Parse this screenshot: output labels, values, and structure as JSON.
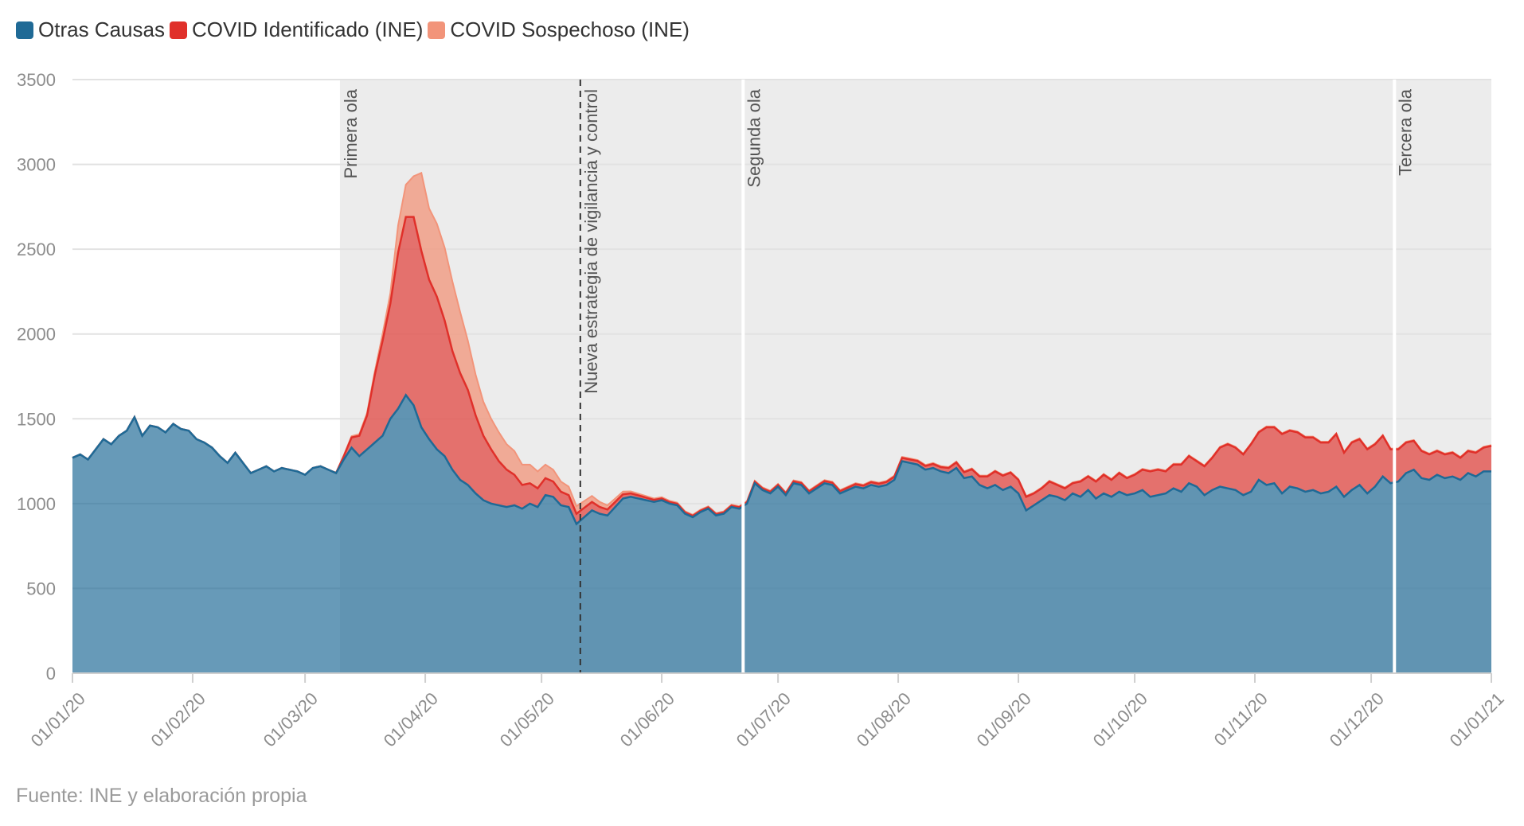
{
  "legend": [
    {
      "label": "Otras Causas",
      "color": "#1f6a96"
    },
    {
      "label": "COVID Identificado (INE)",
      "color": "#e0302a"
    },
    {
      "label": "COVID Sospechoso (INE)",
      "color": "#f2947a"
    }
  ],
  "source": "Fuente: INE y elaboración propia",
  "chart_data": {
    "type": "area",
    "stacked": true,
    "ylim": [
      0,
      3500
    ],
    "yticks": [
      0,
      500,
      1000,
      1500,
      2000,
      2500,
      3000,
      3500
    ],
    "xlim_days": [
      0,
      366
    ],
    "xticks": [
      {
        "label": "01/01/20",
        "day": 0
      },
      {
        "label": "01/02/20",
        "day": 31
      },
      {
        "label": "01/03/20",
        "day": 60
      },
      {
        "label": "01/04/20",
        "day": 91
      },
      {
        "label": "01/05/20",
        "day": 121
      },
      {
        "label": "01/06/20",
        "day": 152
      },
      {
        "label": "01/07/20",
        "day": 182
      },
      {
        "label": "01/08/20",
        "day": 213
      },
      {
        "label": "01/09/20",
        "day": 244
      },
      {
        "label": "01/10/20",
        "day": 274
      },
      {
        "label": "01/11/20",
        "day": 305
      },
      {
        "label": "01/12/20",
        "day": 335
      },
      {
        "label": "01/01/21",
        "day": 366
      }
    ],
    "shaded_region": {
      "start_day": 69,
      "end_day": 366,
      "color": "#ececec"
    },
    "annotations": [
      {
        "label": "Primera ola",
        "day": 69,
        "style": "none"
      },
      {
        "label": "Nueva estrategia de vigilancia y control",
        "day": 131,
        "style": "dashed"
      },
      {
        "label": "Segunda ola",
        "day": 173,
        "style": "white"
      },
      {
        "label": "Tercera ola",
        "day": 341,
        "style": "white"
      }
    ],
    "series_points": {
      "otras_causas": [
        [
          0,
          1270
        ],
        [
          2,
          1290
        ],
        [
          4,
          1260
        ],
        [
          6,
          1320
        ],
        [
          8,
          1380
        ],
        [
          10,
          1350
        ],
        [
          12,
          1400
        ],
        [
          14,
          1430
        ],
        [
          16,
          1510
        ],
        [
          18,
          1400
        ],
        [
          20,
          1460
        ],
        [
          22,
          1450
        ],
        [
          24,
          1420
        ],
        [
          26,
          1470
        ],
        [
          28,
          1440
        ],
        [
          30,
          1430
        ],
        [
          32,
          1380
        ],
        [
          34,
          1360
        ],
        [
          36,
          1330
        ],
        [
          38,
          1280
        ],
        [
          40,
          1240
        ],
        [
          42,
          1300
        ],
        [
          44,
          1240
        ],
        [
          46,
          1180
        ],
        [
          48,
          1200
        ],
        [
          50,
          1220
        ],
        [
          52,
          1190
        ],
        [
          54,
          1210
        ],
        [
          56,
          1200
        ],
        [
          58,
          1190
        ],
        [
          60,
          1170
        ],
        [
          62,
          1210
        ],
        [
          64,
          1220
        ],
        [
          66,
          1200
        ],
        [
          68,
          1180
        ],
        [
          70,
          1260
        ],
        [
          72,
          1330
        ],
        [
          74,
          1280
        ],
        [
          76,
          1320
        ],
        [
          78,
          1360
        ],
        [
          80,
          1400
        ],
        [
          82,
          1500
        ],
        [
          84,
          1560
        ],
        [
          86,
          1640
        ],
        [
          88,
          1580
        ],
        [
          90,
          1450
        ],
        [
          92,
          1380
        ],
        [
          94,
          1320
        ],
        [
          96,
          1280
        ],
        [
          98,
          1200
        ],
        [
          100,
          1140
        ],
        [
          102,
          1110
        ],
        [
          104,
          1060
        ],
        [
          106,
          1020
        ],
        [
          108,
          1000
        ],
        [
          110,
          990
        ],
        [
          112,
          980
        ],
        [
          114,
          990
        ],
        [
          116,
          970
        ],
        [
          118,
          1000
        ],
        [
          120,
          980
        ],
        [
          122,
          1050
        ],
        [
          124,
          1040
        ],
        [
          126,
          990
        ],
        [
          128,
          980
        ],
        [
          130,
          880
        ],
        [
          132,
          920
        ],
        [
          134,
          960
        ],
        [
          136,
          940
        ],
        [
          138,
          930
        ],
        [
          140,
          980
        ],
        [
          142,
          1030
        ],
        [
          144,
          1040
        ],
        [
          146,
          1030
        ],
        [
          148,
          1020
        ],
        [
          150,
          1010
        ],
        [
          152,
          1020
        ],
        [
          154,
          1000
        ],
        [
          156,
          990
        ],
        [
          158,
          940
        ],
        [
          160,
          920
        ],
        [
          162,
          950
        ],
        [
          164,
          970
        ],
        [
          166,
          930
        ],
        [
          168,
          940
        ],
        [
          170,
          980
        ],
        [
          172,
          970
        ],
        [
          174,
          1000
        ],
        [
          176,
          1120
        ],
        [
          178,
          1080
        ],
        [
          180,
          1060
        ],
        [
          182,
          1100
        ],
        [
          184,
          1050
        ],
        [
          186,
          1120
        ],
        [
          188,
          1110
        ],
        [
          190,
          1060
        ],
        [
          192,
          1090
        ],
        [
          194,
          1120
        ],
        [
          196,
          1110
        ],
        [
          198,
          1060
        ],
        [
          200,
          1080
        ],
        [
          202,
          1100
        ],
        [
          204,
          1090
        ],
        [
          206,
          1110
        ],
        [
          208,
          1100
        ],
        [
          210,
          1110
        ],
        [
          212,
          1140
        ],
        [
          214,
          1250
        ],
        [
          216,
          1240
        ],
        [
          218,
          1230
        ],
        [
          220,
          1200
        ],
        [
          222,
          1210
        ],
        [
          224,
          1190
        ],
        [
          226,
          1180
        ],
        [
          228,
          1210
        ],
        [
          230,
          1150
        ],
        [
          232,
          1160
        ],
        [
          234,
          1110
        ],
        [
          236,
          1090
        ],
        [
          238,
          1110
        ],
        [
          240,
          1080
        ],
        [
          242,
          1100
        ],
        [
          244,
          1060
        ],
        [
          246,
          960
        ],
        [
          248,
          990
        ],
        [
          250,
          1020
        ],
        [
          252,
          1050
        ],
        [
          254,
          1040
        ],
        [
          256,
          1020
        ],
        [
          258,
          1060
        ],
        [
          260,
          1040
        ],
        [
          262,
          1080
        ],
        [
          264,
          1030
        ],
        [
          266,
          1060
        ],
        [
          268,
          1040
        ],
        [
          270,
          1070
        ],
        [
          272,
          1050
        ],
        [
          274,
          1060
        ],
        [
          276,
          1080
        ],
        [
          278,
          1040
        ],
        [
          280,
          1050
        ],
        [
          282,
          1060
        ],
        [
          284,
          1090
        ],
        [
          286,
          1070
        ],
        [
          288,
          1120
        ],
        [
          290,
          1100
        ],
        [
          292,
          1050
        ],
        [
          294,
          1080
        ],
        [
          296,
          1100
        ],
        [
          298,
          1090
        ],
        [
          300,
          1080
        ],
        [
          302,
          1050
        ],
        [
          304,
          1070
        ],
        [
          306,
          1140
        ],
        [
          308,
          1110
        ],
        [
          310,
          1120
        ],
        [
          312,
          1060
        ],
        [
          314,
          1100
        ],
        [
          316,
          1090
        ],
        [
          318,
          1070
        ],
        [
          320,
          1080
        ],
        [
          322,
          1060
        ],
        [
          324,
          1070
        ],
        [
          326,
          1100
        ],
        [
          328,
          1040
        ],
        [
          330,
          1080
        ],
        [
          332,
          1110
        ],
        [
          334,
          1060
        ],
        [
          336,
          1100
        ],
        [
          338,
          1160
        ],
        [
          340,
          1120
        ],
        [
          342,
          1130
        ],
        [
          344,
          1180
        ],
        [
          346,
          1200
        ],
        [
          348,
          1150
        ],
        [
          350,
          1140
        ],
        [
          352,
          1170
        ],
        [
          354,
          1150
        ],
        [
          356,
          1160
        ],
        [
          358,
          1140
        ],
        [
          360,
          1180
        ],
        [
          362,
          1160
        ],
        [
          364,
          1190
        ],
        [
          366,
          1190
        ]
      ],
      "covid_identificado": [
        [
          0,
          0
        ],
        [
          64,
          0
        ],
        [
          68,
          0
        ],
        [
          70,
          20
        ],
        [
          72,
          60
        ],
        [
          74,
          120
        ],
        [
          76,
          200
        ],
        [
          78,
          400
        ],
        [
          80,
          560
        ],
        [
          82,
          680
        ],
        [
          84,
          920
        ],
        [
          86,
          1050
        ],
        [
          88,
          1110
        ],
        [
          90,
          1040
        ],
        [
          92,
          940
        ],
        [
          94,
          900
        ],
        [
          96,
          800
        ],
        [
          98,
          700
        ],
        [
          100,
          630
        ],
        [
          102,
          560
        ],
        [
          104,
          460
        ],
        [
          106,
          380
        ],
        [
          108,
          320
        ],
        [
          110,
          260
        ],
        [
          112,
          220
        ],
        [
          114,
          180
        ],
        [
          116,
          140
        ],
        [
          118,
          120
        ],
        [
          120,
          110
        ],
        [
          122,
          100
        ],
        [
          124,
          90
        ],
        [
          126,
          80
        ],
        [
          128,
          70
        ],
        [
          130,
          60
        ],
        [
          132,
          55
        ],
        [
          134,
          50
        ],
        [
          136,
          40
        ],
        [
          138,
          35
        ],
        [
          140,
          30
        ],
        [
          142,
          25
        ],
        [
          144,
          20
        ],
        [
          146,
          18
        ],
        [
          148,
          15
        ],
        [
          150,
          12
        ],
        [
          152,
          10
        ],
        [
          160,
          8
        ],
        [
          170,
          8
        ],
        [
          180,
          10
        ],
        [
          190,
          12
        ],
        [
          200,
          14
        ],
        [
          210,
          18
        ],
        [
          220,
          22
        ],
        [
          224,
          25
        ],
        [
          226,
          30
        ],
        [
          230,
          35
        ],
        [
          234,
          50
        ],
        [
          236,
          70
        ],
        [
          238,
          80
        ],
        [
          240,
          85
        ],
        [
          244,
          80
        ],
        [
          246,
          80
        ],
        [
          248,
          70
        ],
        [
          250,
          70
        ],
        [
          252,
          80
        ],
        [
          254,
          70
        ],
        [
          256,
          70
        ],
        [
          258,
          60
        ],
        [
          260,
          90
        ],
        [
          262,
          80
        ],
        [
          264,
          100
        ],
        [
          266,
          110
        ],
        [
          268,
          100
        ],
        [
          270,
          110
        ],
        [
          272,
          100
        ],
        [
          274,
          110
        ],
        [
          276,
          120
        ],
        [
          278,
          150
        ],
        [
          280,
          150
        ],
        [
          282,
          130
        ],
        [
          284,
          140
        ],
        [
          286,
          160
        ],
        [
          288,
          160
        ],
        [
          290,
          150
        ],
        [
          292,
          170
        ],
        [
          294,
          190
        ],
        [
          296,
          230
        ],
        [
          298,
          260
        ],
        [
          300,
          250
        ],
        [
          302,
          240
        ],
        [
          304,
          280
        ],
        [
          306,
          280
        ],
        [
          308,
          340
        ],
        [
          310,
          330
        ],
        [
          312,
          350
        ],
        [
          314,
          330
        ],
        [
          316,
          330
        ],
        [
          318,
          320
        ],
        [
          320,
          310
        ],
        [
          322,
          300
        ],
        [
          324,
          290
        ],
        [
          326,
          310
        ],
        [
          328,
          260
        ],
        [
          330,
          280
        ],
        [
          332,
          270
        ],
        [
          334,
          260
        ],
        [
          336,
          250
        ],
        [
          338,
          240
        ],
        [
          340,
          200
        ],
        [
          342,
          190
        ],
        [
          344,
          180
        ],
        [
          346,
          170
        ],
        [
          348,
          160
        ],
        [
          350,
          150
        ],
        [
          352,
          140
        ],
        [
          354,
          140
        ],
        [
          356,
          140
        ],
        [
          358,
          130
        ],
        [
          360,
          130
        ],
        [
          362,
          140
        ],
        [
          364,
          140
        ],
        [
          366,
          150
        ]
      ],
      "covid_sospechoso": [
        [
          0,
          0
        ],
        [
          66,
          0
        ],
        [
          70,
          5
        ],
        [
          74,
          10
        ],
        [
          78,
          20
        ],
        [
          80,
          40
        ],
        [
          82,
          60
        ],
        [
          84,
          160
        ],
        [
          86,
          190
        ],
        [
          88,
          240
        ],
        [
          90,
          460
        ],
        [
          92,
          420
        ],
        [
          94,
          430
        ],
        [
          96,
          430
        ],
        [
          98,
          410
        ],
        [
          100,
          360
        ],
        [
          102,
          290
        ],
        [
          104,
          240
        ],
        [
          106,
          200
        ],
        [
          108,
          180
        ],
        [
          110,
          170
        ],
        [
          112,
          150
        ],
        [
          114,
          140
        ],
        [
          116,
          120
        ],
        [
          118,
          110
        ],
        [
          120,
          100
        ],
        [
          122,
          80
        ],
        [
          124,
          70
        ],
        [
          126,
          60
        ],
        [
          128,
          50
        ],
        [
          130,
          45
        ],
        [
          132,
          40
        ],
        [
          134,
          35
        ],
        [
          136,
          30
        ],
        [
          138,
          25
        ],
        [
          140,
          20
        ],
        [
          142,
          16
        ],
        [
          144,
          12
        ],
        [
          146,
          10
        ],
        [
          150,
          8
        ],
        [
          160,
          6
        ],
        [
          180,
          6
        ],
        [
          200,
          6
        ],
        [
          220,
          6
        ],
        [
          240,
          5
        ],
        [
          260,
          5
        ],
        [
          280,
          5
        ],
        [
          300,
          5
        ],
        [
          320,
          5
        ],
        [
          340,
          5
        ],
        [
          366,
          5
        ]
      ]
    }
  }
}
